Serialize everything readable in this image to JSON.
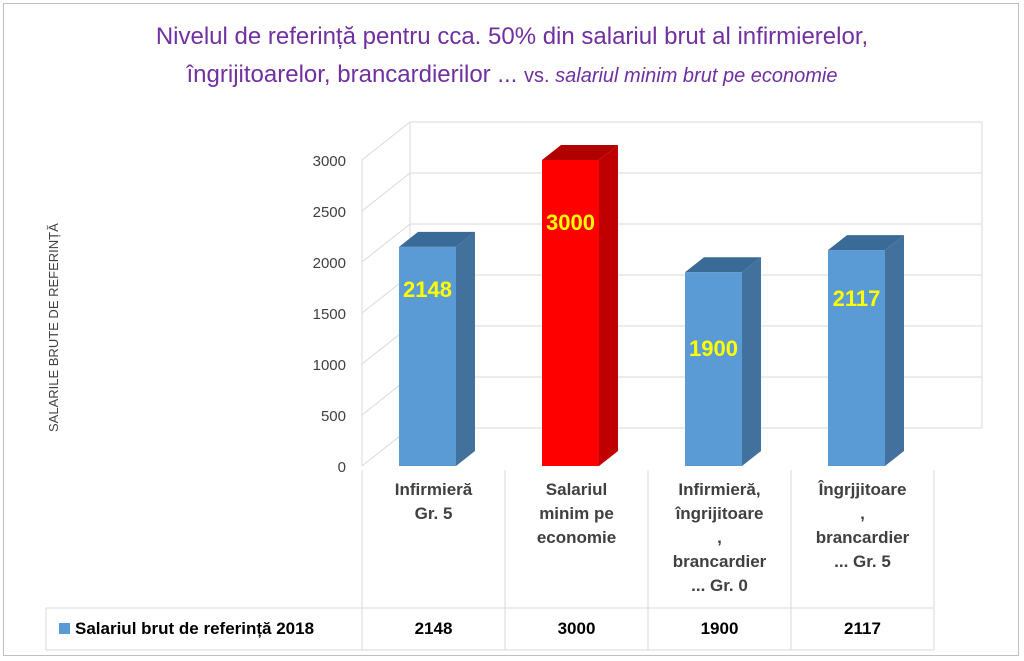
{
  "title": {
    "line1": "Nivelul de referință pentru cca. 50% din salariul brut al infirmierelor,",
    "line2_main": "îngrijitoarelor, brancardierilor ... ",
    "line2_vs": "vs. ",
    "line2_italic": "salariul minim brut pe economie"
  },
  "chart_data": {
    "type": "bar",
    "title": "Nivelul de referință pentru cca. 50% din salariul brut al infirmierelor, îngrijitoarelor, brancardierilor ... vs. salariul minim brut pe economie",
    "ylabel": "SALARILE BRUTE DE REFERINȚĂ",
    "xlabel": "",
    "ylim": [
      0,
      3000
    ],
    "yticks": [
      "0",
      "500",
      "1000",
      "1500",
      "2000",
      "2500",
      "3000"
    ],
    "categories": [
      "Infirmieră\nGr. 5",
      "Salariul\nminim pe\neconomie",
      "Infirmieră,\nîngrijitoare\n,\nbrancardier\n... Gr. 0",
      "Îngrjjitoare\n,\nbrancardier\n... Gr. 5"
    ],
    "series": [
      {
        "name": "Salariul brut de referință 2018",
        "values": [
          2148,
          3000,
          1900,
          2117
        ],
        "colors": [
          "#5b9bd5",
          "#ff0000",
          "#5b9bd5",
          "#5b9bd5"
        ]
      }
    ],
    "data_labels": [
      "2148",
      "3000",
      "1900",
      "2117"
    ],
    "grid": true,
    "legend": "data-table-bottom",
    "style": "3d-column"
  },
  "table": {
    "legend_label": "Salariul brut de referință 2018",
    "values": [
      "2148",
      "3000",
      "1900",
      "2117"
    ]
  }
}
